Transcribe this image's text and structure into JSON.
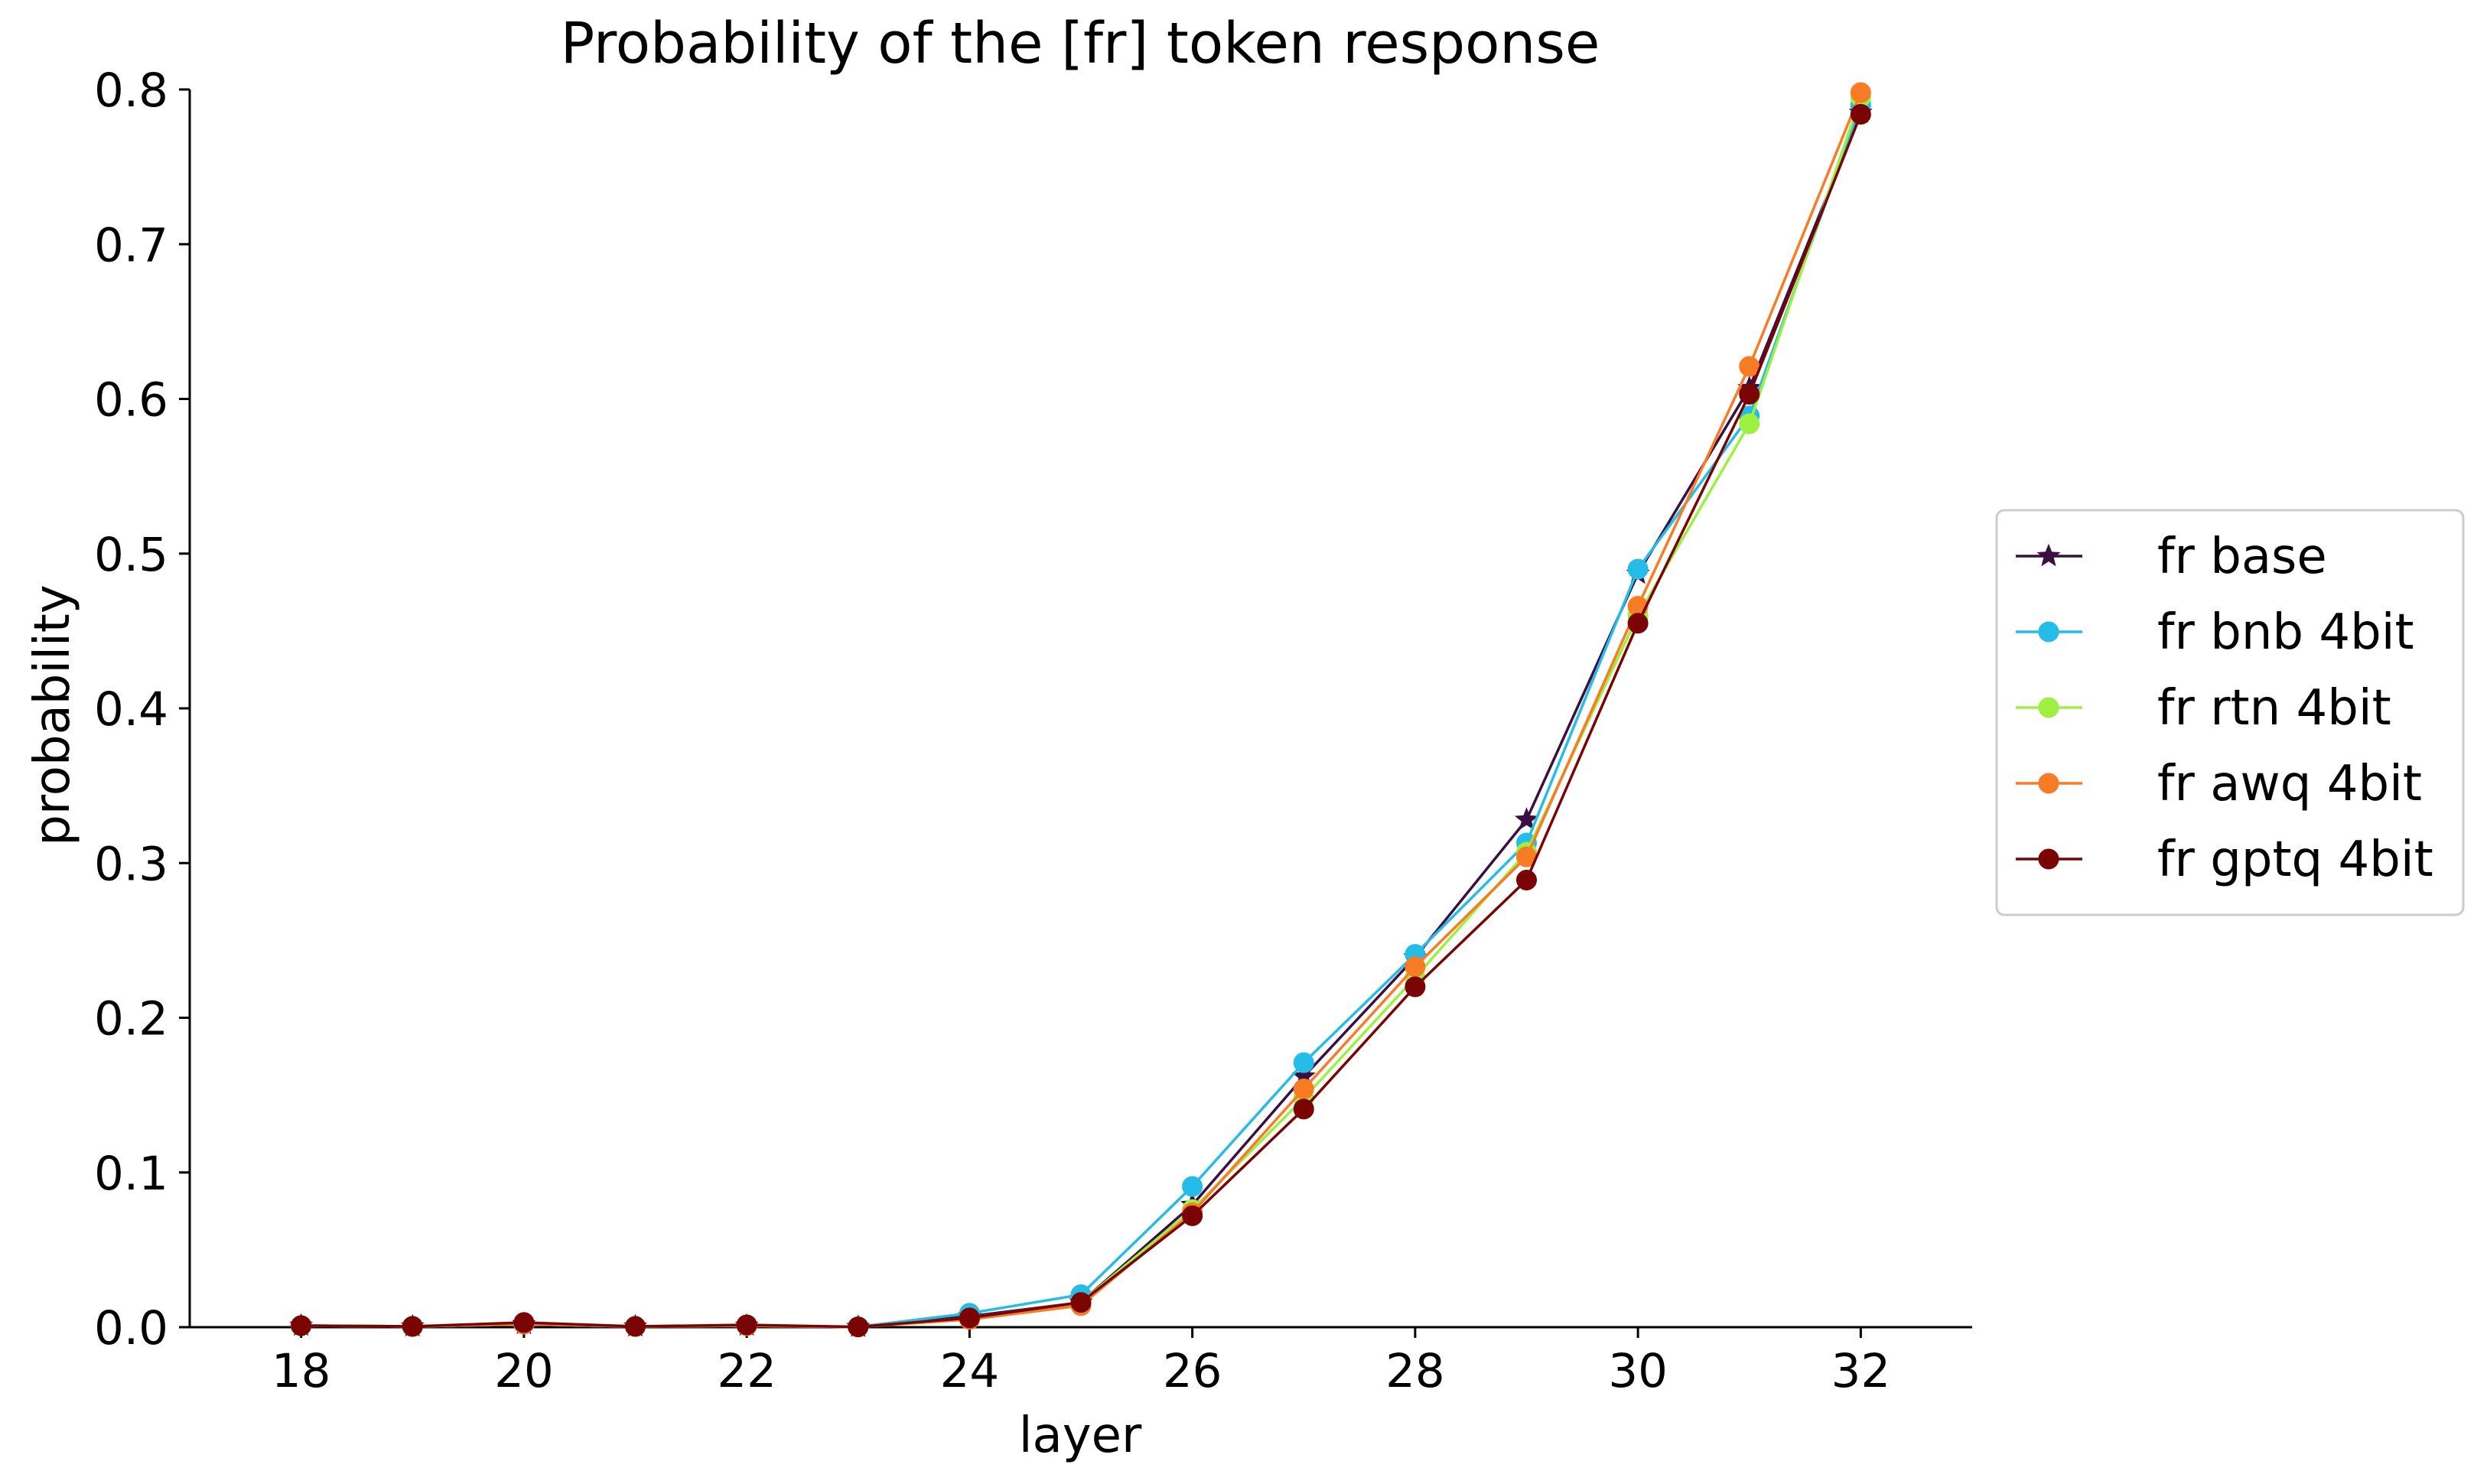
{
  "chart_data": {
    "type": "line",
    "title": "Probability of the [fr] token response",
    "xlabel": "layer",
    "ylabel": "probability",
    "xlim": [
      17,
      33
    ],
    "ylim": [
      0.0,
      0.8
    ],
    "xticks": [
      18,
      20,
      22,
      24,
      26,
      28,
      30,
      32
    ],
    "xtick_labels": [
      "18",
      "20",
      "22",
      "24",
      "26",
      "28",
      "30",
      "32"
    ],
    "yticks": [
      0.0,
      0.1,
      0.2,
      0.3,
      0.4,
      0.5,
      0.6,
      0.7,
      0.8
    ],
    "ytick_labels": [
      "0.0",
      "0.1",
      "0.2",
      "0.3",
      "0.4",
      "0.5",
      "0.6",
      "0.7",
      "0.8"
    ],
    "grid": false,
    "legend_position": "center-right, outside plot",
    "x": [
      18,
      19,
      20,
      21,
      22,
      23,
      24,
      25,
      26,
      27,
      28,
      29,
      30,
      31,
      32
    ],
    "series": [
      {
        "name": "fr base",
        "color": "#3b0f41",
        "marker": "star",
        "values": [
          0.001,
          0.0005,
          0.002,
          0.0005,
          0.001,
          0.0002,
          0.007,
          0.016,
          0.079,
          0.162,
          0.239,
          0.328,
          0.487,
          0.607,
          0.785
        ]
      },
      {
        "name": "fr bnb 4bit",
        "color": "#25bde8",
        "marker": "circle",
        "values": [
          0.001,
          0.0005,
          0.002,
          0.0005,
          0.001,
          0.0002,
          0.009,
          0.021,
          0.091,
          0.171,
          0.241,
          0.313,
          0.49,
          0.589,
          0.79
        ]
      },
      {
        "name": "fr rtn 4bit",
        "color": "#9ef040",
        "marker": "circle",
        "values": [
          0.001,
          0.0005,
          0.002,
          0.0005,
          0.001,
          0.0002,
          0.006,
          0.016,
          0.076,
          0.148,
          0.226,
          0.307,
          0.46,
          0.584,
          0.795
        ]
      },
      {
        "name": "fr awq 4bit",
        "color": "#f87b26",
        "marker": "circle",
        "values": [
          0.001,
          0.0005,
          0.002,
          0.0005,
          0.001,
          0.0002,
          0.005,
          0.014,
          0.074,
          0.154,
          0.233,
          0.304,
          0.466,
          0.621,
          0.798
        ]
      },
      {
        "name": "fr gptq 4bit",
        "color": "#7a0403",
        "marker": "circle",
        "values": [
          0.001,
          0.0005,
          0.003,
          0.0005,
          0.0015,
          0.0002,
          0.006,
          0.016,
          0.072,
          0.141,
          0.22,
          0.289,
          0.455,
          0.603,
          0.784
        ]
      }
    ]
  }
}
